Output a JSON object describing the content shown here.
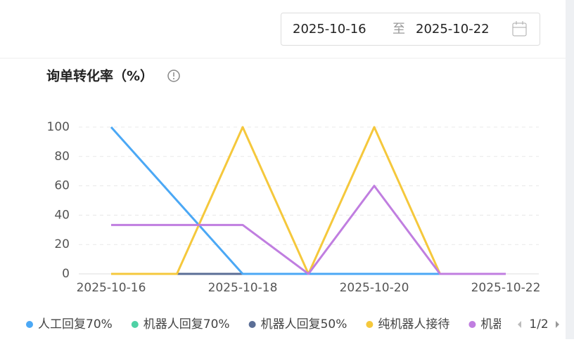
{
  "date_picker": {
    "start": "2025-10-16",
    "separator": "至",
    "end": "2025-10-22"
  },
  "chart_data": {
    "type": "line",
    "title": "询单转化率（%）",
    "categories": [
      "2025-10-16",
      null,
      "2025-10-18",
      null,
      "2025-10-20",
      null,
      "2025-10-22"
    ],
    "ylim": [
      0,
      100
    ],
    "yticks": [
      0,
      20,
      40,
      60,
      80,
      100
    ],
    "grid": true,
    "series": [
      {
        "name": "机器人回复70%",
        "color": "#4fd1a5",
        "values": [
          0,
          0,
          0,
          0,
          0,
          0,
          0
        ]
      },
      {
        "name": "机器人回复50%",
        "color": "#5b6e96",
        "values": [
          0,
          0,
          0,
          0,
          0,
          0,
          0
        ]
      },
      {
        "name": "人工回复70%",
        "color": "#4ba8f5",
        "values": [
          100,
          50,
          0,
          0,
          0,
          0,
          0
        ]
      },
      {
        "name": "纯机器人接待",
        "color": "#f5c83c",
        "values": [
          0,
          0,
          100,
          0,
          100,
          0,
          0
        ]
      },
      {
        "name": "机器",
        "color": "#c07ee0",
        "values": [
          33.33,
          33.33,
          33.33,
          0,
          60,
          0,
          0
        ]
      }
    ],
    "legend_order": [
      2,
      0,
      1,
      3,
      4
    ],
    "legend_page": "1/2"
  }
}
